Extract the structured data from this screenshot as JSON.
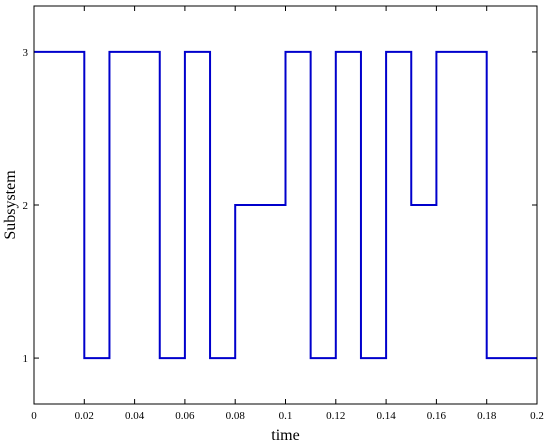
{
  "chart_data": {
    "type": "line",
    "line_style": "step",
    "xlabel": "time",
    "ylabel": "Subsystem",
    "xlim": [
      0,
      0.2
    ],
    "ylim": [
      0.7,
      3.3
    ],
    "grid": false,
    "legend": "none",
    "series_color": "#0000cc",
    "x_ticks": [
      {
        "value": 0,
        "label": "0"
      },
      {
        "value": 0.02,
        "label": "0.02"
      },
      {
        "value": 0.04,
        "label": "0.04"
      },
      {
        "value": 0.06,
        "label": "0.06"
      },
      {
        "value": 0.08,
        "label": "0.08"
      },
      {
        "value": 0.1,
        "label": "0.1"
      },
      {
        "value": 0.12,
        "label": "0.12"
      },
      {
        "value": 0.14,
        "label": "0.14"
      },
      {
        "value": 0.16,
        "label": "0.16"
      },
      {
        "value": 0.18,
        "label": "0.18"
      },
      {
        "value": 0.2,
        "label": "0.2"
      }
    ],
    "y_ticks": [
      {
        "value": 1,
        "label": "1"
      },
      {
        "value": 2,
        "label": "2"
      },
      {
        "value": 3,
        "label": "3"
      }
    ],
    "series": [
      {
        "x": [
          0,
          0.02,
          0.03,
          0.05,
          0.06,
          0.07,
          0.08,
          0.1,
          0.11,
          0.12,
          0.13,
          0.14,
          0.15,
          0.16,
          0.18,
          0.2
        ],
        "y": [
          3,
          1,
          3,
          1,
          3,
          1,
          2,
          3,
          1,
          3,
          1,
          3,
          2,
          3,
          1,
          1
        ]
      }
    ]
  }
}
